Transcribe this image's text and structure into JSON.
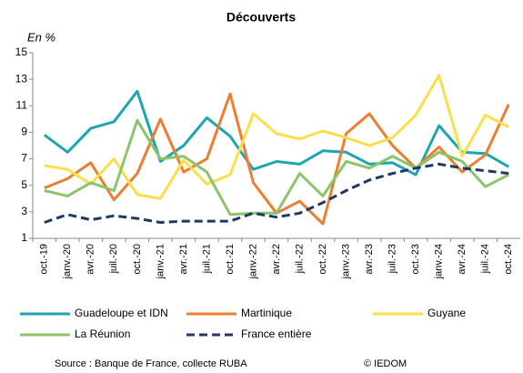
{
  "chart_data": {
    "type": "line",
    "title": "Découverts",
    "y_label": "En %",
    "categories": [
      "oct.-19",
      "janv.-20",
      "avr.-20",
      "juil.-20",
      "oct.-20",
      "janv.-21",
      "avr.-21",
      "juil.-21",
      "oct.-21",
      "janv.-22",
      "avr.-22",
      "juil.-22",
      "oct.-22",
      "janv.-23",
      "avr.-23",
      "juil.-23",
      "oct.-23",
      "janv.-24",
      "avr.-24",
      "juil.-24",
      "oct.-24"
    ],
    "series": [
      {
        "name": "Guadeloupe et IDN",
        "color": "#1ba6b2",
        "dashed": false,
        "values": [
          8.8,
          7.5,
          9.3,
          9.8,
          12.1,
          6.8,
          8.0,
          10.1,
          8.7,
          6.2,
          6.8,
          6.6,
          7.6,
          7.5,
          6.6,
          6.7,
          5.8,
          9.5,
          7.5,
          7.4,
          6.4
        ]
      },
      {
        "name": "Martinique",
        "color": "#ed7d31",
        "dashed": false,
        "values": [
          4.8,
          5.5,
          6.7,
          3.9,
          5.9,
          10.0,
          6.0,
          7.0,
          11.9,
          5.2,
          2.9,
          3.8,
          2.1,
          8.9,
          10.4,
          8.0,
          6.3,
          7.9,
          6.0,
          7.3,
          11.1
        ]
      },
      {
        "name": "Guyane",
        "color": "#f9df4a",
        "dashed": false,
        "values": [
          6.5,
          6.2,
          5.1,
          7.0,
          4.3,
          4.0,
          6.9,
          5.1,
          5.8,
          10.4,
          8.9,
          8.5,
          9.1,
          8.6,
          8.0,
          8.6,
          10.3,
          13.3,
          7.2,
          10.3,
          9.4
        ]
      },
      {
        "name": "La Réunion",
        "color": "#8cc46b",
        "dashed": false,
        "values": [
          4.6,
          4.2,
          5.2,
          4.6,
          9.9,
          7.0,
          7.2,
          6.0,
          2.8,
          2.9,
          2.9,
          5.9,
          4.2,
          6.8,
          6.3,
          7.2,
          6.3,
          7.5,
          6.8,
          4.9,
          5.8
        ]
      },
      {
        "name": "France entière",
        "color": "#1f3864",
        "dashed": true,
        "values": [
          2.2,
          2.8,
          2.4,
          2.7,
          2.5,
          2.2,
          2.3,
          2.3,
          2.3,
          2.9,
          2.6,
          2.9,
          3.7,
          4.6,
          5.4,
          5.9,
          6.3,
          6.6,
          6.3,
          6.1,
          5.9
        ]
      }
    ],
    "ylim": [
      1,
      15
    ],
    "yticks": [
      1,
      3,
      5,
      7,
      9,
      11,
      13,
      15
    ],
    "grid": false,
    "source": "Source : Banque de France, collecte RUBA",
    "copyright": "© IEDOM"
  }
}
